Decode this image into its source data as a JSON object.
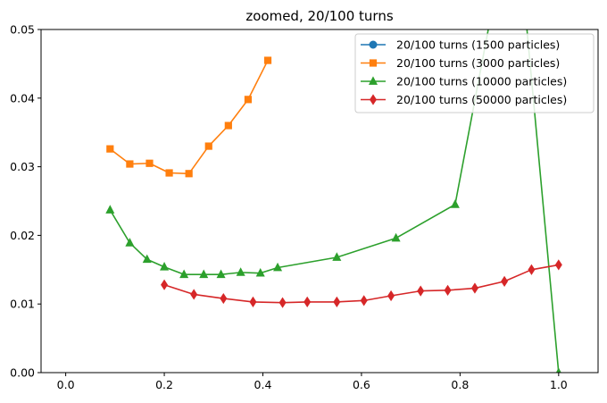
{
  "chart_data": {
    "type": "line",
    "title": "zoomed, 20/100 turns",
    "xlabel": "",
    "ylabel": "",
    "xlim": [
      -0.05,
      1.08
    ],
    "ylim": [
      0.0,
      0.05
    ],
    "xticks": [
      0.0,
      0.2,
      0.4,
      0.6,
      0.8,
      1.0
    ],
    "xtick_labels": [
      "0.0",
      "0.2",
      "0.4",
      "0.6",
      "0.8",
      "1.0"
    ],
    "yticks": [
      0.0,
      0.01,
      0.02,
      0.03,
      0.04,
      0.05
    ],
    "ytick_labels": [
      "0.00",
      "0.01",
      "0.02",
      "0.03",
      "0.04",
      "0.05"
    ],
    "grid": false,
    "legend_position": "top-right",
    "series": [
      {
        "name": "20/100 turns (1500 particles)",
        "color": "#1f77b4",
        "marker": "circle",
        "x": [],
        "y": []
      },
      {
        "name": "20/100 turns (3000 particles)",
        "color": "#ff7f0e",
        "marker": "square",
        "x": [
          0.09,
          0.13,
          0.17,
          0.21,
          0.25,
          0.29,
          0.33,
          0.37,
          0.41
        ],
        "y": [
          0.0326,
          0.0304,
          0.0305,
          0.0291,
          0.029,
          0.033,
          0.036,
          0.0398,
          0.0455
        ]
      },
      {
        "name": "20/100 turns (10000 particles)",
        "color": "#2ca02c",
        "marker": "triangle",
        "x": [
          0.09,
          0.13,
          0.165,
          0.2,
          0.24,
          0.28,
          0.315,
          0.355,
          0.395,
          0.43,
          0.55,
          0.67,
          0.79,
          0.91,
          1.0
        ],
        "y": [
          0.0237,
          0.0189,
          0.0165,
          0.0154,
          0.0143,
          0.0143,
          0.0143,
          0.0146,
          0.0145,
          0.0153,
          0.0168,
          0.0196,
          0.0245,
          0.07,
          0.0
        ]
      },
      {
        "name": "20/100 turns (50000 particles)",
        "color": "#d62728",
        "marker": "diamond",
        "x": [
          0.2,
          0.26,
          0.32,
          0.38,
          0.44,
          0.49,
          0.55,
          0.605,
          0.66,
          0.72,
          0.775,
          0.83,
          0.89,
          0.945,
          1.0
        ],
        "y": [
          0.0128,
          0.0114,
          0.0108,
          0.0103,
          0.0102,
          0.0103,
          0.0103,
          0.0105,
          0.0112,
          0.0119,
          0.012,
          0.0123,
          0.0133,
          0.015,
          0.0157
        ]
      }
    ]
  }
}
